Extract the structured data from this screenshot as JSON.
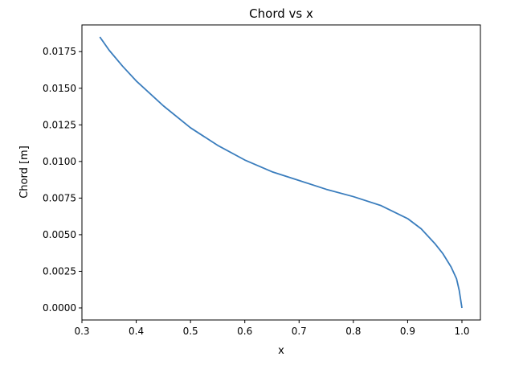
{
  "chart_data": {
    "type": "line",
    "title": "Chord vs x",
    "xlabel": "x",
    "ylabel": "Chord [m]",
    "xlim": [
      0.3,
      1.0
    ],
    "ylim": [
      0.0,
      0.0185
    ],
    "xticks": [
      "0.3",
      "0.4",
      "0.5",
      "0.6",
      "0.7",
      "0.8",
      "0.9",
      "1.0"
    ],
    "yticks": [
      "0.0000",
      "0.0025",
      "0.0050",
      "0.0075",
      "0.0100",
      "0.0125",
      "0.0150",
      "0.0175"
    ],
    "grid": false,
    "series": [
      {
        "color": "#3a7dbd",
        "x": [
          0.333,
          0.35,
          0.375,
          0.4,
          0.45,
          0.5,
          0.55,
          0.6,
          0.65,
          0.7,
          0.75,
          0.8,
          0.85,
          0.9,
          0.925,
          0.95,
          0.965,
          0.98,
          0.99,
          0.995,
          1.0
        ],
        "y": [
          0.0185,
          0.0176,
          0.0165,
          0.0155,
          0.0138,
          0.0123,
          0.0111,
          0.0101,
          0.0093,
          0.0087,
          0.0081,
          0.0076,
          0.007,
          0.0061,
          0.0054,
          0.0044,
          0.0037,
          0.0028,
          0.002,
          0.0012,
          0.0
        ]
      }
    ]
  }
}
